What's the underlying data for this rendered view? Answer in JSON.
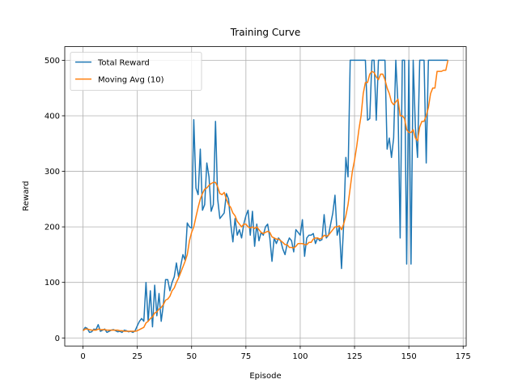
{
  "chart_data": {
    "type": "line",
    "title": "Training Curve",
    "x_label": "Episode",
    "y_label": "Reward",
    "x": [
      0,
      1,
      2,
      3,
      4,
      5,
      6,
      7,
      8,
      9,
      10,
      11,
      12,
      13,
      14,
      15,
      16,
      17,
      18,
      19,
      20,
      21,
      22,
      23,
      24,
      25,
      26,
      27,
      28,
      29,
      30,
      31,
      32,
      33,
      34,
      35,
      36,
      37,
      38,
      39,
      40,
      41,
      42,
      43,
      44,
      45,
      46,
      47,
      48,
      49,
      50,
      51,
      52,
      53,
      54,
      55,
      56,
      57,
      58,
      59,
      60,
      61,
      62,
      63,
      64,
      65,
      66,
      67,
      68,
      69,
      70,
      71,
      72,
      73,
      74,
      75,
      76,
      77,
      78,
      79,
      80,
      81,
      82,
      83,
      84,
      85,
      86,
      87,
      88,
      89,
      90,
      91,
      92,
      93,
      94,
      95,
      96,
      97,
      98,
      99,
      100,
      101,
      102,
      103,
      104,
      105,
      106,
      107,
      108,
      109,
      110,
      111,
      112,
      113,
      114,
      115,
      116,
      117,
      118,
      119,
      120,
      121,
      122,
      123,
      124,
      125,
      126,
      127,
      128,
      129,
      130,
      131,
      132,
      133,
      134,
      135,
      136,
      137,
      138,
      139,
      140,
      141,
      142,
      143,
      144,
      145,
      146,
      147,
      148,
      149,
      150,
      151,
      152,
      153,
      154,
      155,
      156,
      157,
      158,
      159,
      160,
      161,
      162,
      163,
      164,
      165,
      166,
      167,
      168
    ],
    "series": [
      {
        "name": "Total Reward",
        "color": "#1f77b4",
        "values": [
          13,
          19,
          17,
          10,
          11,
          16,
          15,
          24,
          12,
          14,
          16,
          10,
          12,
          14,
          15,
          13,
          11,
          12,
          10,
          14,
          13,
          11,
          12,
          10,
          13,
          22,
          30,
          35,
          30,
          100,
          30,
          85,
          20,
          95,
          40,
          80,
          30,
          60,
          105,
          105,
          85,
          100,
          110,
          135,
          110,
          130,
          150,
          140,
          207,
          200,
          198,
          393,
          270,
          258,
          340,
          230,
          240,
          315,
          290,
          228,
          240,
          390,
          250,
          215,
          220,
          225,
          260,
          250,
          205,
          173,
          215,
          185,
          195,
          180,
          205,
          220,
          230,
          185,
          228,
          165,
          205,
          175,
          190,
          185,
          200,
          205,
          180,
          138,
          180,
          170,
          180,
          175,
          160,
          150,
          170,
          180,
          175,
          155,
          195,
          190,
          185,
          213,
          147,
          180,
          185,
          185,
          188,
          170,
          180,
          175,
          177,
          222,
          180,
          185,
          205,
          225,
          257,
          185,
          200,
          125,
          205,
          325,
          290,
          500,
          500,
          500,
          500,
          500,
          500,
          500,
          500,
          392,
          395,
          500,
          500,
          392,
          500,
          500,
          500,
          500,
          340,
          360,
          325,
          360,
          500,
          420,
          180,
          500,
          500,
          133,
          500,
          133,
          500,
          380,
          325,
          500,
          500,
          500,
          315,
          500,
          500,
          500,
          500,
          500,
          500,
          500,
          500,
          500,
          500
        ]
      },
      {
        "name": "Moving Avg (10)",
        "color": "#ff7f0e",
        "values": [
          13,
          16,
          16,
          15,
          14,
          14,
          14,
          16,
          15,
          15,
          15,
          14,
          14,
          14,
          14,
          14,
          14,
          13,
          13,
          12,
          12,
          12,
          12,
          12,
          12,
          13,
          15,
          17,
          19,
          27,
          30,
          35,
          38,
          45,
          47,
          52,
          55,
          60,
          68,
          70,
          75,
          85,
          90,
          100,
          108,
          118,
          128,
          138,
          150,
          175,
          190,
          200,
          218,
          235,
          250,
          260,
          268,
          270,
          275,
          278,
          280,
          280,
          272,
          260,
          258,
          262,
          250,
          240,
          235,
          225,
          220,
          210,
          205,
          200,
          205,
          205,
          200,
          198,
          200,
          197,
          200,
          195,
          190,
          188,
          190,
          192,
          190,
          182,
          180,
          178,
          178,
          175,
          172,
          168,
          168,
          163,
          163,
          162,
          165,
          170,
          170,
          170,
          168,
          168,
          172,
          172,
          178,
          180,
          180,
          178,
          180,
          185,
          183,
          185,
          190,
          195,
          200,
          200,
          202,
          195,
          205,
          220,
          240,
          270,
          300,
          320,
          345,
          375,
          400,
          440,
          460,
          460,
          475,
          480,
          478,
          470,
          465,
          475,
          475,
          465,
          450,
          440,
          425,
          420,
          425,
          430,
          400,
          400,
          395,
          375,
          370,
          370,
          375,
          360,
          355,
          380,
          390,
          390,
          400,
          415,
          440,
          450,
          450,
          480,
          480,
          480,
          482,
          482,
          500
        ]
      }
    ],
    "xlim": [
      -8.4,
      176.4
    ],
    "ylim": [
      -14.5,
      524.5
    ],
    "xticks": [
      0,
      25,
      50,
      75,
      100,
      125,
      150,
      175
    ],
    "yticks": [
      0,
      100,
      200,
      300,
      400,
      500
    ],
    "grid": true,
    "legend": "upper left"
  }
}
